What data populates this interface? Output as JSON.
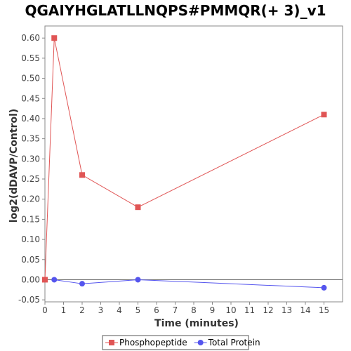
{
  "chart_data": {
    "type": "line",
    "title": "QGAIYHGLATLLNQPS#PMMQR(+ 3)_v1",
    "xlabel": "Time (minutes)",
    "ylabel": "log2(dDAVP/Control)",
    "xlim": [
      0,
      16
    ],
    "ylim": [
      -0.055,
      0.63
    ],
    "xticks": [
      "0",
      "1",
      "2",
      "3",
      "4",
      "5",
      "6",
      "7",
      "8",
      "9",
      "10",
      "11",
      "12",
      "13",
      "14",
      "15"
    ],
    "yticks": [
      "-0.05",
      "0.00",
      "0.05",
      "0.10",
      "0.15",
      "0.20",
      "0.25",
      "0.30",
      "0.35",
      "0.40",
      "0.45",
      "0.50",
      "0.55",
      "0.60"
    ],
    "grid": false,
    "legend_position": "bottom",
    "series": [
      {
        "name": "Phosphopeptide",
        "color": "#e05555",
        "marker": "square",
        "x": [
          0,
          0.5,
          2,
          5,
          15
        ],
        "y": [
          0.0,
          0.6,
          0.26,
          0.18,
          0.41
        ]
      },
      {
        "name": "Total Protein",
        "color": "#5555ee",
        "marker": "circle",
        "x": [
          0.5,
          2,
          5,
          15
        ],
        "y": [
          0.0,
          -0.01,
          0.0,
          -0.02
        ]
      }
    ]
  }
}
